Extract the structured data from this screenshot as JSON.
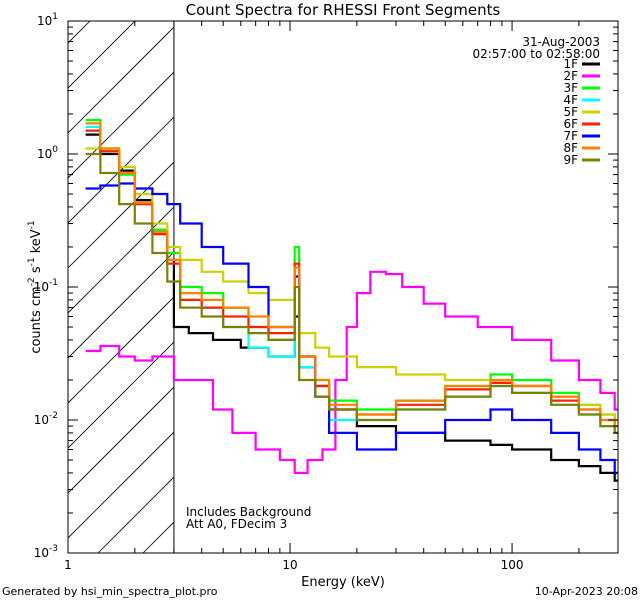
{
  "chart_data": {
    "type": "line",
    "title": "Count Spectra for RHESSI Front Segments",
    "xlabel": "Energy (keV)",
    "ylabel": "counts cm",
    "ylabel_parts": [
      "counts cm",
      "-2",
      " s",
      "-1",
      " keV",
      "-1"
    ],
    "x_scale": "log",
    "y_scale": "log",
    "xlim": [
      1,
      300
    ],
    "ylim": [
      0.001,
      10
    ],
    "x_ticks": [
      {
        "value": 1,
        "label": "1"
      },
      {
        "value": 10,
        "label": "10"
      },
      {
        "value": 100,
        "label": "100"
      }
    ],
    "y_ticks": [
      {
        "value": 0.001,
        "base": "10",
        "exp": "-3"
      },
      {
        "value": 0.01,
        "base": "10",
        "exp": "-2"
      },
      {
        "value": 0.1,
        "base": "10",
        "exp": "-1"
      },
      {
        "value": 1,
        "base": "10",
        "exp": "0"
      },
      {
        "value": 10,
        "base": "10",
        "exp": "1"
      }
    ],
    "hatched_region_keV": [
      1,
      3
    ],
    "date": "31-Aug-2003",
    "time_range": "02:57:00 to 02:58:00",
    "annotations": [
      "Includes Background",
      "Att A0, FDecim 3"
    ],
    "series": [
      {
        "name": "1F",
        "color": "#000000",
        "x": [
          1.2,
          1.4,
          1.7,
          2.0,
          2.4,
          2.8,
          3.0,
          3.5,
          4.5,
          6,
          8,
          10.5,
          11,
          13,
          15,
          20,
          30,
          50,
          80,
          100,
          150,
          200,
          250,
          290
        ],
        "y": [
          1.4,
          1.0,
          0.75,
          0.45,
          0.27,
          0.16,
          0.05,
          0.045,
          0.04,
          0.035,
          0.03,
          0.06,
          0.025,
          0.018,
          0.012,
          0.009,
          0.008,
          0.007,
          0.0065,
          0.006,
          0.005,
          0.0045,
          0.004,
          0.0035
        ]
      },
      {
        "name": "2F",
        "color": "#ff00ff",
        "x": [
          1.2,
          1.4,
          1.7,
          2.0,
          2.4,
          3.0,
          3.5,
          4.5,
          5.5,
          7,
          9,
          10.5,
          12,
          14,
          16,
          18,
          20,
          23,
          27,
          32,
          40,
          50,
          70,
          100,
          150,
          200,
          250,
          290
        ],
        "y": [
          0.033,
          0.036,
          0.03,
          0.028,
          0.03,
          0.02,
          0.02,
          0.012,
          0.008,
          0.006,
          0.005,
          0.004,
          0.005,
          0.006,
          0.02,
          0.05,
          0.09,
          0.13,
          0.125,
          0.1,
          0.075,
          0.06,
          0.05,
          0.04,
          0.028,
          0.02,
          0.016,
          0.012
        ]
      },
      {
        "name": "3F",
        "color": "#00ff00",
        "x": [
          1.2,
          1.4,
          1.7,
          2.0,
          2.4,
          2.8,
          3.2,
          4,
          5,
          6.5,
          8,
          10.5,
          11,
          13,
          15,
          20,
          30,
          50,
          80,
          100,
          150,
          200,
          250,
          290
        ],
        "y": [
          1.8,
          1.1,
          0.7,
          0.42,
          0.27,
          0.18,
          0.1,
          0.09,
          0.07,
          0.05,
          0.04,
          0.2,
          0.03,
          0.02,
          0.014,
          0.012,
          0.014,
          0.018,
          0.022,
          0.02,
          0.016,
          0.013,
          0.011,
          0.01
        ]
      },
      {
        "name": "4F",
        "color": "#00ffff",
        "x": [
          1.2,
          1.4,
          1.7,
          2.0,
          2.4,
          2.8,
          3.2,
          4,
          5,
          6.5,
          8,
          10.5,
          11,
          13,
          15,
          20,
          30,
          50,
          80,
          100,
          150,
          200,
          250,
          290
        ],
        "y": [
          1.6,
          1.05,
          0.72,
          0.42,
          0.26,
          0.16,
          0.08,
          0.07,
          0.05,
          0.035,
          0.03,
          0.15,
          0.025,
          0.015,
          0.01,
          0.01,
          0.012,
          0.015,
          0.018,
          0.016,
          0.013,
          0.011,
          0.009,
          0.008
        ]
      },
      {
        "name": "5F",
        "color": "#d0d000",
        "x": [
          1.2,
          1.4,
          1.7,
          2.0,
          2.4,
          2.8,
          3.2,
          4,
          5,
          6.5,
          8,
          10.5,
          11,
          13,
          15,
          20,
          30,
          50,
          80,
          100,
          150,
          200,
          250,
          290
        ],
        "y": [
          1.1,
          1.05,
          0.8,
          0.5,
          0.3,
          0.2,
          0.16,
          0.13,
          0.11,
          0.09,
          0.08,
          0.12,
          0.045,
          0.035,
          0.03,
          0.025,
          0.022,
          0.02,
          0.02,
          0.018,
          0.015,
          0.013,
          0.011,
          0.01
        ]
      },
      {
        "name": "6F",
        "color": "#ff2000",
        "x": [
          1.2,
          1.4,
          1.7,
          2.0,
          2.4,
          2.8,
          3.2,
          4,
          5,
          6.5,
          8,
          10.5,
          11,
          13,
          15,
          20,
          30,
          50,
          80,
          100,
          150,
          200,
          250,
          290
        ],
        "y": [
          1.5,
          1.05,
          0.72,
          0.42,
          0.25,
          0.15,
          0.08,
          0.07,
          0.06,
          0.05,
          0.045,
          0.15,
          0.03,
          0.018,
          0.012,
          0.011,
          0.013,
          0.017,
          0.019,
          0.018,
          0.014,
          0.012,
          0.01,
          0.009
        ]
      },
      {
        "name": "7F",
        "color": "#0000ff",
        "x": [
          1.2,
          1.4,
          1.7,
          2.0,
          2.4,
          2.8,
          3.2,
          4,
          5,
          6.5,
          8,
          10.5,
          11,
          13,
          15,
          20,
          30,
          50,
          80,
          100,
          150,
          200,
          250,
          290
        ],
        "y": [
          0.55,
          0.58,
          0.6,
          0.55,
          0.5,
          0.42,
          0.3,
          0.2,
          0.15,
          0.1,
          0.05,
          0.12,
          0.03,
          0.015,
          0.008,
          0.006,
          0.008,
          0.01,
          0.012,
          0.01,
          0.008,
          0.006,
          0.005,
          0.004
        ]
      },
      {
        "name": "8F",
        "color": "#ff8000",
        "x": [
          1.2,
          1.4,
          1.7,
          2.0,
          2.4,
          2.8,
          3.2,
          4,
          5,
          6.5,
          8,
          10.5,
          11,
          13,
          15,
          20,
          30,
          50,
          80,
          100,
          150,
          200,
          250,
          290
        ],
        "y": [
          1.7,
          1.1,
          0.72,
          0.43,
          0.26,
          0.16,
          0.09,
          0.08,
          0.07,
          0.06,
          0.05,
          0.14,
          0.03,
          0.02,
          0.013,
          0.011,
          0.014,
          0.018,
          0.02,
          0.018,
          0.015,
          0.012,
          0.01,
          0.009
        ]
      },
      {
        "name": "9F",
        "color": "#808000",
        "x": [
          1.2,
          1.4,
          1.7,
          2.0,
          2.4,
          2.8,
          3.2,
          4,
          5,
          6.5,
          8,
          10.5,
          11,
          13,
          15,
          20,
          30,
          50,
          80,
          100,
          150,
          200,
          250,
          290
        ],
        "y": [
          1.0,
          0.72,
          0.42,
          0.3,
          0.18,
          0.11,
          0.07,
          0.06,
          0.05,
          0.045,
          0.04,
          0.1,
          0.02,
          0.015,
          0.012,
          0.01,
          0.012,
          0.015,
          0.018,
          0.016,
          0.013,
          0.011,
          0.009,
          0.008
        ]
      }
    ]
  },
  "footer": {
    "generator": "Generated by hsi_min_spectra_plot.pro",
    "generated_date": "10-Apr-2023 20:08"
  }
}
